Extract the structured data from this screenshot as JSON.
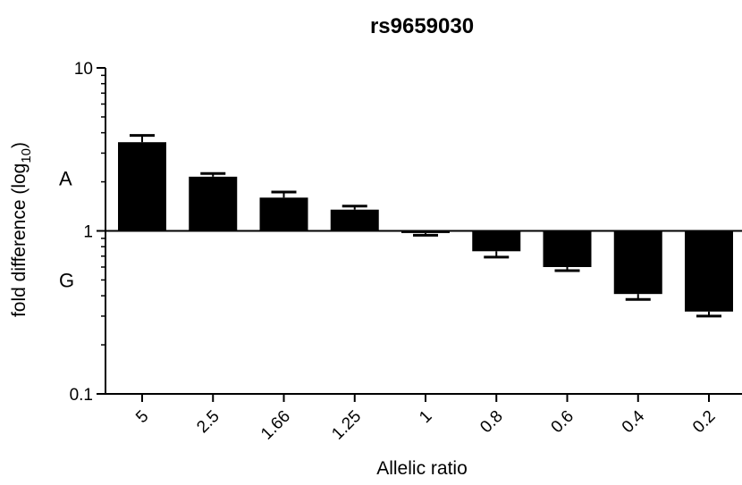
{
  "chart_data": {
    "type": "bar",
    "title": "rs9659030",
    "xlabel": "Allelic ratio",
    "ylabel": {
      "prefix": "fold difference (log",
      "subscript": "10",
      "suffix": ")"
    },
    "yscale": "log",
    "ylim": [
      0.1,
      10
    ],
    "yticks": [
      {
        "value": 0.1,
        "label": "0.1"
      },
      {
        "value": 1,
        "label": "1"
      },
      {
        "value": 10,
        "label": "10"
      }
    ],
    "baseline": 1,
    "categories": [
      "5",
      "2.5",
      "1.66",
      "1.25",
      "1",
      "0.8",
      "0.6",
      "0.4",
      "0.2"
    ],
    "values": [
      3.5,
      2.15,
      1.6,
      1.35,
      0.97,
      0.75,
      0.6,
      0.41,
      0.32
    ],
    "error_bar_ends": [
      3.85,
      2.25,
      1.73,
      1.42,
      0.94,
      0.69,
      0.57,
      0.38,
      0.3
    ],
    "region_labels": [
      {
        "text": "A",
        "value": 2.1
      },
      {
        "text": "G",
        "value": 0.5
      }
    ],
    "bar_color": "#000000",
    "grid": false,
    "legend": "none"
  }
}
